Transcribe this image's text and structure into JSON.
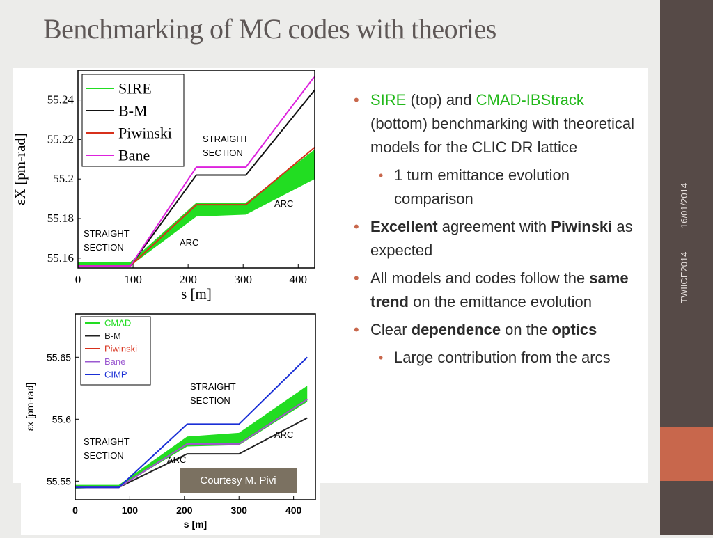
{
  "slide": {
    "title": "Benchmarking of MC codes with theories",
    "side_date": "16/01/2014",
    "side_event": "TWIICE2014",
    "courtesy": "Courtesy M. Pivi"
  },
  "bullets": {
    "b1": {
      "sire": "SIRE",
      "mid1": " (top) and ",
      "cmad": "CMAD-IBStrack",
      "rest": " (bottom) benchmarking with theoretical models for the CLIC DR lattice"
    },
    "b1_sub": "1 turn emittance evolution comparison",
    "b2": {
      "bold1": "Excellent",
      "mid": " agreement with ",
      "bold2": "Piwinski",
      "rest": " as expected"
    },
    "b3": {
      "pre": "All models and codes follow the ",
      "bold": "same trend",
      "rest": " on the emittance evolution"
    },
    "b4": {
      "pre": "Clear ",
      "bold1": "dependence",
      "mid": " on the ",
      "bold2": "optics"
    },
    "b4_sub": "Large contribution from the arcs"
  },
  "colors": {
    "accent": "#c8674c",
    "sidebar": "#564a47",
    "green": "#22b81a",
    "red": "#d7301b"
  },
  "chart_data": [
    {
      "type": "line",
      "xlabel": "s [m]",
      "ylabel": "εX [pm-rad]",
      "xticks": [
        "0",
        "100",
        "200",
        "300",
        "400"
      ],
      "yticks": [
        "55.16",
        "55.18",
        "55.2",
        "55.22",
        "55.24"
      ],
      "xlim": [
        0,
        430
      ],
      "ylim": [
        55.155,
        55.255
      ],
      "legend": [
        "SIRE",
        "B-M",
        "Piwinski",
        "Bane"
      ],
      "annotations": [
        "STRAIGHT SECTION",
        "STRAIGHT SECTION",
        "ARC",
        "ARC"
      ],
      "series": [
        {
          "name": "SIRE",
          "color": "#22dd22",
          "band": true,
          "x": [
            0,
            95,
            215,
            305,
            430
          ],
          "low": [
            55.156,
            55.156,
            55.181,
            55.182,
            55.2
          ],
          "high": [
            55.158,
            55.158,
            55.188,
            55.188,
            55.215
          ]
        },
        {
          "name": "B-M",
          "color": "#111111",
          "x": [
            0,
            95,
            215,
            305,
            430
          ],
          "y": [
            55.156,
            55.156,
            55.202,
            55.202,
            55.245
          ]
        },
        {
          "name": "Piwinski",
          "color": "#d7301b",
          "x": [
            0,
            95,
            215,
            305,
            430
          ],
          "y": [
            55.156,
            55.156,
            55.187,
            55.187,
            55.216
          ]
        },
        {
          "name": "Bane",
          "color": "#dd22dd",
          "x": [
            0,
            95,
            215,
            305,
            430
          ],
          "y": [
            55.156,
            55.156,
            55.206,
            55.206,
            55.252
          ]
        }
      ]
    },
    {
      "type": "line",
      "xlabel": "s [m]",
      "ylabel": "εx [pm-rad]",
      "xticks": [
        "0",
        "100",
        "200",
        "300",
        "400"
      ],
      "yticks": [
        "55.55",
        "55.6",
        "55.65"
      ],
      "xlim": [
        0,
        440
      ],
      "ylim": [
        55.535,
        55.685
      ],
      "legend": [
        "CMAD",
        "B-M",
        "Piwinski",
        "Bane",
        "CIMP"
      ],
      "legend_colors": [
        "#22dd22",
        "#222222",
        "#d7301b",
        "#9b59d0",
        "#1a2fd6"
      ],
      "annotations": [
        "STRAIGHT SECTION",
        "STRAIGHT SECTION",
        "ARC",
        "ARC"
      ],
      "series": [
        {
          "name": "CMAD",
          "color": "#22dd22",
          "band": true,
          "x": [
            0,
            80,
            205,
            300,
            425
          ],
          "low": [
            55.544,
            55.545,
            55.578,
            55.579,
            55.614
          ],
          "high": [
            55.547,
            55.547,
            55.586,
            55.589,
            55.627
          ]
        },
        {
          "name": "B-M",
          "color": "#222222",
          "x": [
            0,
            80,
            205,
            300,
            425
          ],
          "y": [
            55.545,
            55.545,
            55.572,
            55.572,
            55.601
          ]
        },
        {
          "name": "Piwinski",
          "color": "#d7301b",
          "x": [
            0,
            80,
            205,
            300,
            425
          ],
          "y": [
            55.545,
            55.545,
            55.58,
            55.58,
            55.616
          ]
        },
        {
          "name": "Bane",
          "color": "#9b59d0",
          "x": [
            0,
            80,
            205,
            300,
            425
          ],
          "y": [
            55.545,
            55.545,
            55.58,
            55.58,
            55.616
          ]
        },
        {
          "name": "CIMP",
          "color": "#1a2fd6",
          "x": [
            0,
            80,
            205,
            300,
            425
          ],
          "y": [
            55.545,
            55.545,
            55.596,
            55.596,
            55.65
          ]
        }
      ]
    }
  ]
}
